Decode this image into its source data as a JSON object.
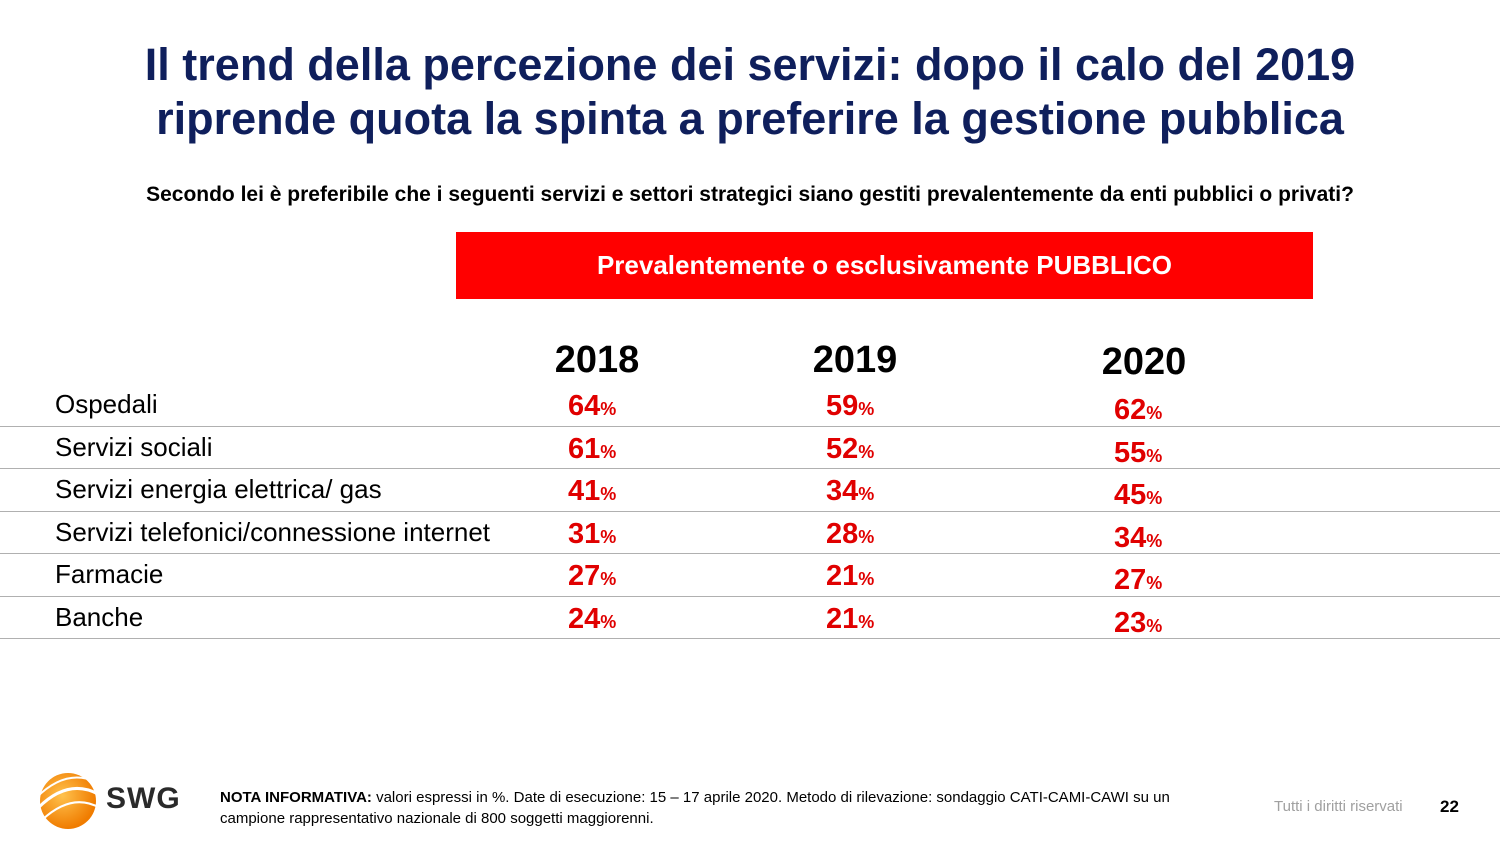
{
  "title": {
    "line1": "Il trend della percezione dei servizi: dopo il calo del 2019",
    "line2": "riprende quota la spinta a preferire la gestione pubblica"
  },
  "question": "Secondo lei è preferibile che i seguenti servizi e settori strategici siano gestiti prevalentemente da enti pubblici o privati?",
  "banner": "Prevalentemente o esclusivamente PUBBLICO",
  "chart_data": {
    "type": "table",
    "title": "Prevalentemente o esclusivamente PUBBLICO",
    "columns": [
      "2018",
      "2019",
      "2020"
    ],
    "unit": "%",
    "rows": [
      {
        "label": "Ospedali",
        "values": [
          "64",
          "59",
          "62"
        ]
      },
      {
        "label": "Servizi sociali",
        "values": [
          "61",
          "52",
          "55"
        ]
      },
      {
        "label": "Servizi energia elettrica/ gas",
        "values": [
          "41",
          "34",
          "45"
        ]
      },
      {
        "label": "Servizi telefonici/connessione internet",
        "values": [
          "31",
          "28",
          "34"
        ]
      },
      {
        "label": "Farmacie",
        "values": [
          "27",
          "21",
          "27"
        ]
      },
      {
        "label": "Banche",
        "values": [
          "24",
          "21",
          "23"
        ]
      }
    ]
  },
  "footer": {
    "note_label": "NOTA INFORMATIVA:",
    "note_text": " valori espressi in %. Date di esecuzione: 15 – 17 aprile 2020. Metodo di rilevazione: sondaggio CATI-CAMI-CAWI su un campione rappresentativo nazionale di 800 soggetti maggiorenni.",
    "rights": "Tutti i diritti riservati",
    "page": "22"
  },
  "logo": {
    "text": "SWG",
    "icon": "globe-logo-icon",
    "color": "#f7941d"
  },
  "colors": {
    "title": "#0f1f5c",
    "accent": "#ff0000",
    "values": "#e00000"
  }
}
